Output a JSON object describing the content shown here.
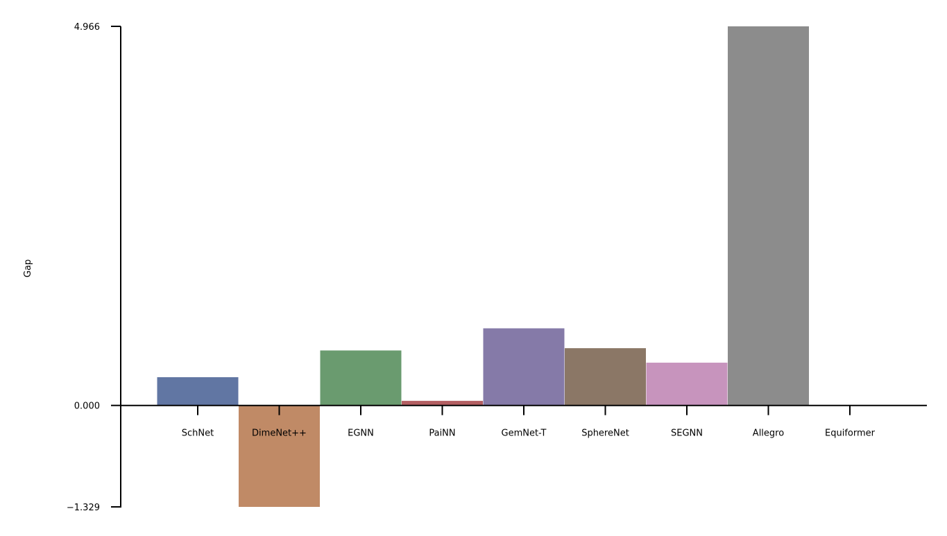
{
  "chart_data": {
    "type": "bar",
    "categories": [
      "SchNet",
      "DimeNet++",
      "EGNN",
      "PaiNN",
      "GemNet-T",
      "SphereNet",
      "SEGNN",
      "Allegro",
      "Equiformer"
    ],
    "values": [
      0.37,
      -1.329,
      0.72,
      0.06,
      1.01,
      0.75,
      0.56,
      4.966,
      0.0
    ],
    "colors": [
      "#6176a3",
      "#c08a66",
      "#6a9b6f",
      "#b35f62",
      "#857aa8",
      "#8b7766",
      "#c794bd",
      "#8c8c8c",
      "#cccc77"
    ],
    "ylabel": "Gap",
    "xlabel": "",
    "ylim": [
      -1.329,
      4.966
    ],
    "yticks": [
      -1.329,
      0.0,
      4.966
    ],
    "ytick_labels": [
      "−1.329",
      "0.000",
      "4.966"
    ],
    "grid": false,
    "legend": "none"
  }
}
